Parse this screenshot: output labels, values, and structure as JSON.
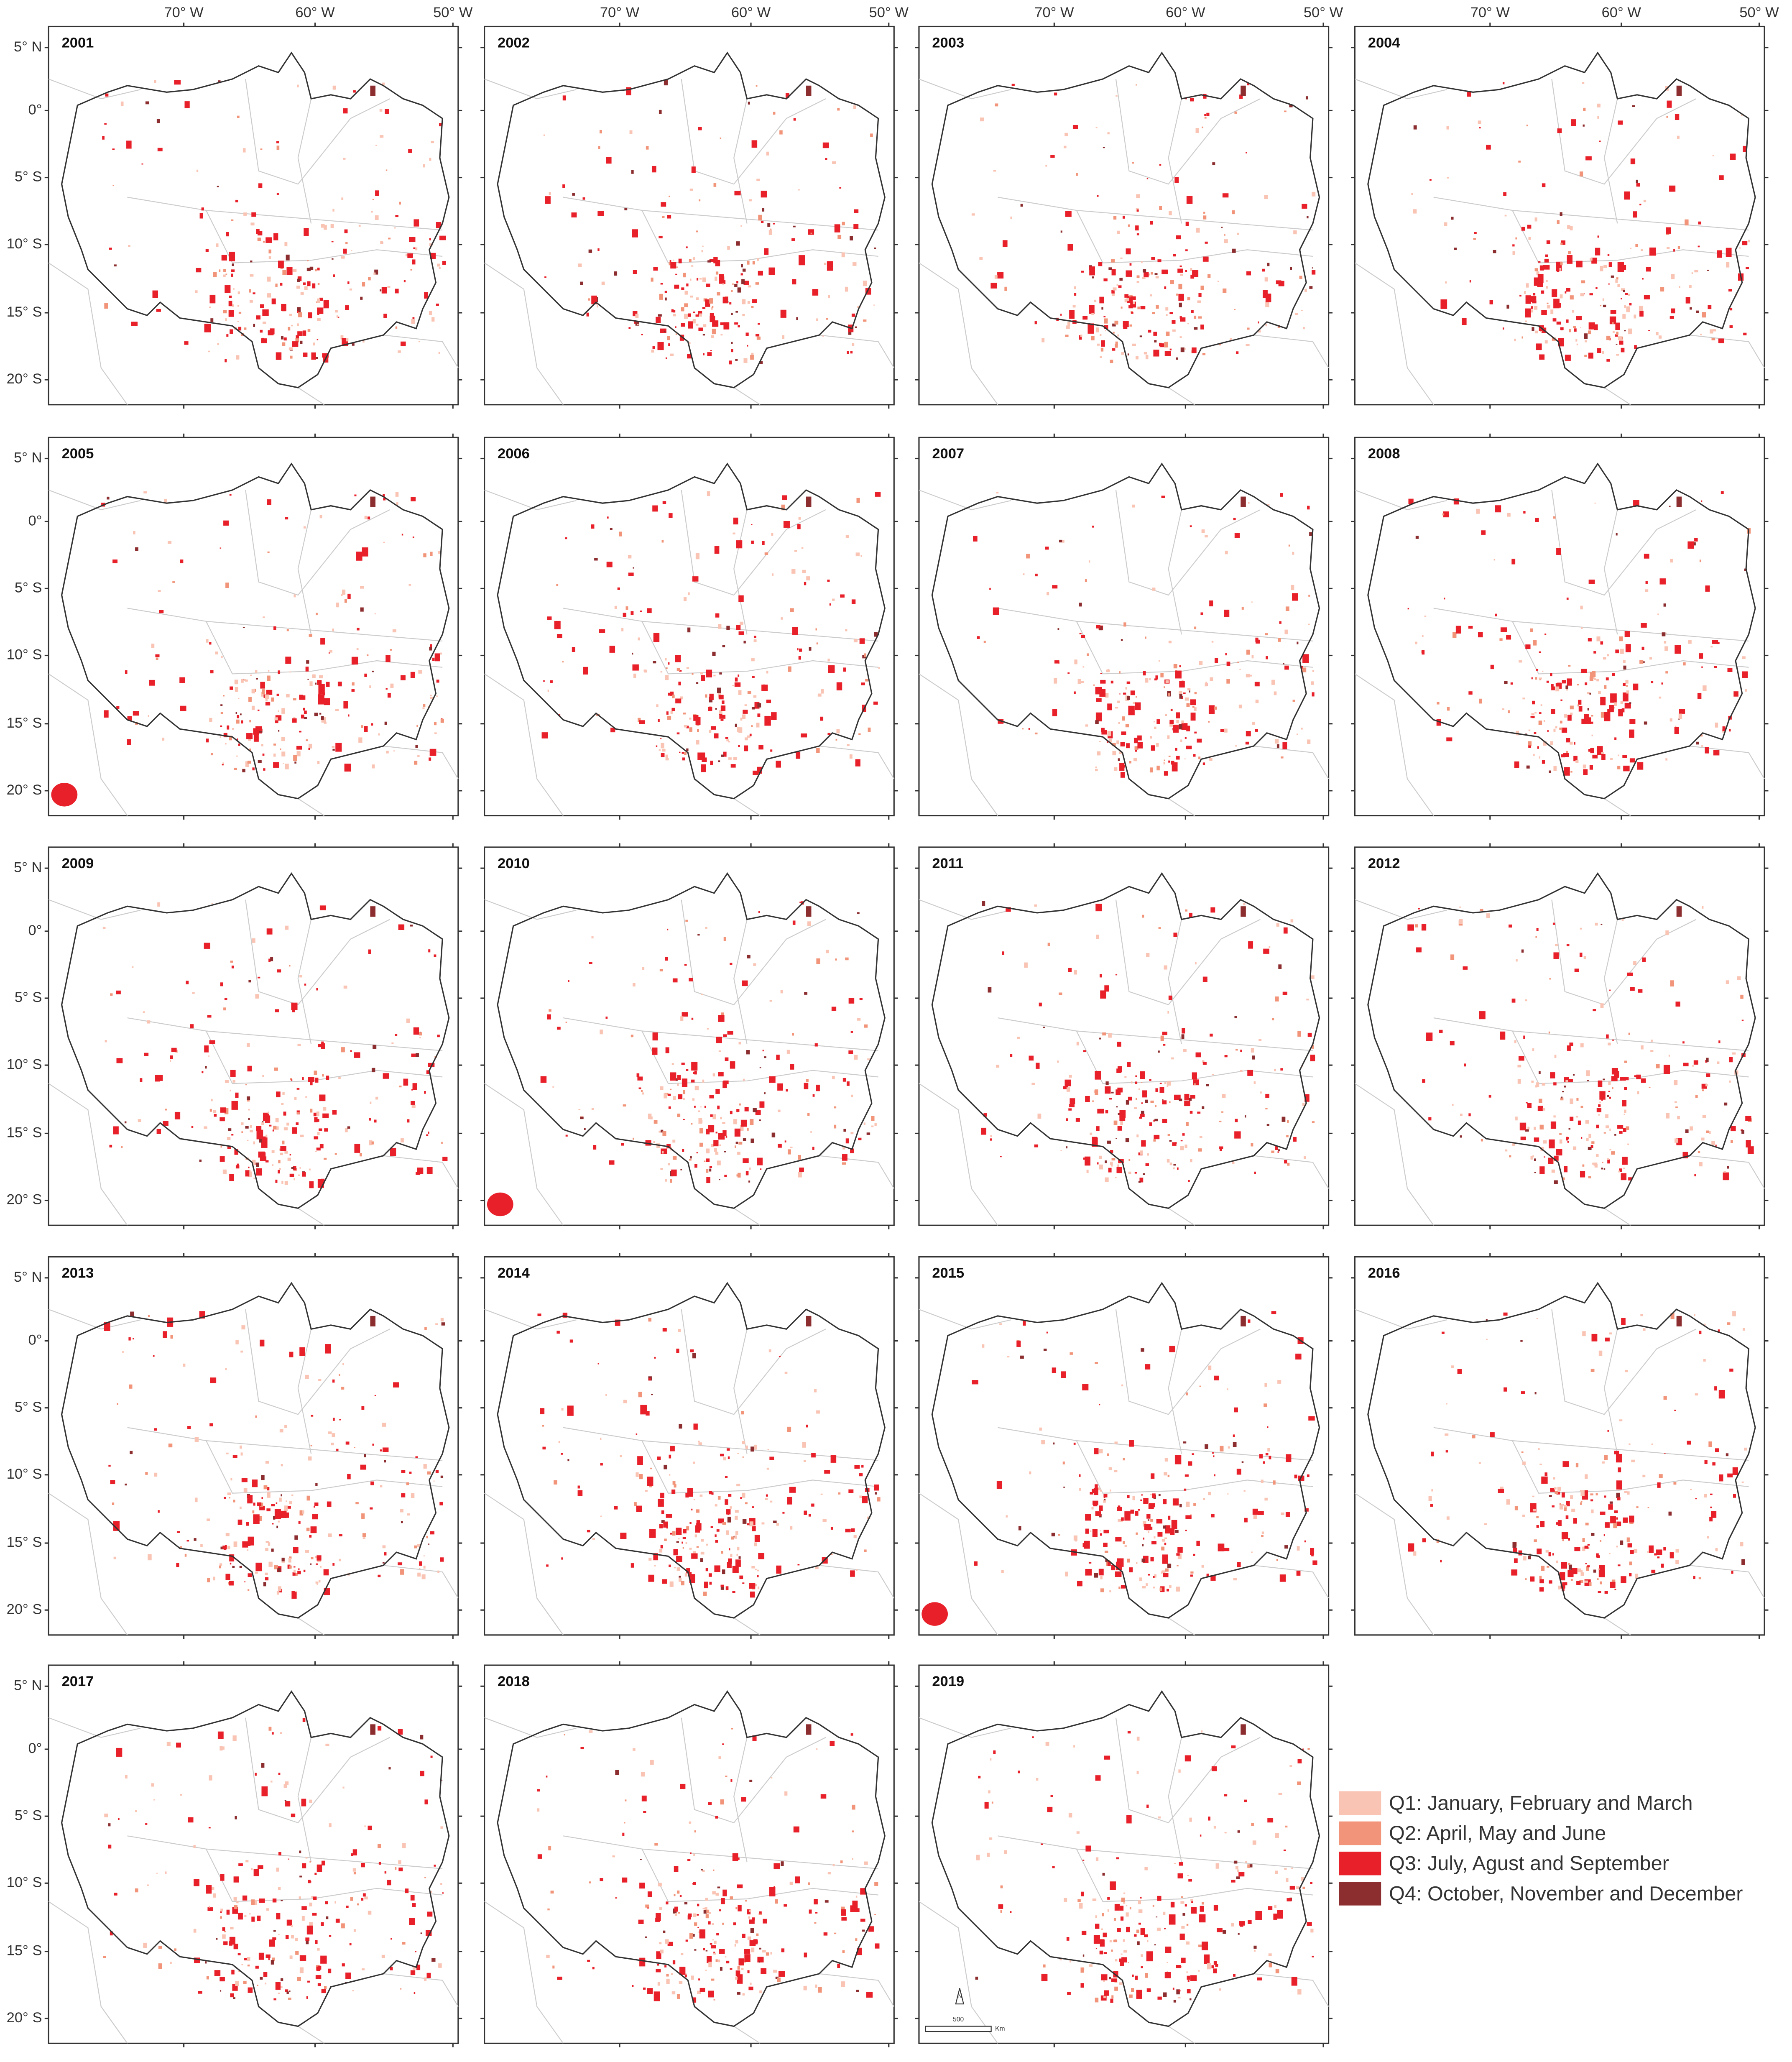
{
  "panels": [
    "2001",
    "2002",
    "2003",
    "2004",
    "2005",
    "2006",
    "2007",
    "2008",
    "2009",
    "2010",
    "2011",
    "2012",
    "2013",
    "2014",
    "2015",
    "2016",
    "2017",
    "2018",
    "2019"
  ],
  "longitude_labels": [
    "70° W",
    "60° W",
    "50° W"
  ],
  "latitude_labels": [
    "5° N",
    "0°",
    "5° S",
    "10° S",
    "15° S",
    "20° S"
  ],
  "legend": [
    {
      "label": "Q1: January, February and March",
      "color": "#f9c4b4"
    },
    {
      "label": "Q2: April, May and June",
      "color": "#f19479"
    },
    {
      "label": "Q3: July, Agust and September",
      "color": "#e8202a"
    },
    {
      "label": "Q4: October, November and December",
      "color": "#8c2d2f"
    }
  ],
  "scale_bar": {
    "distance": "500",
    "unit": "Km"
  },
  "north_label": "N"
}
